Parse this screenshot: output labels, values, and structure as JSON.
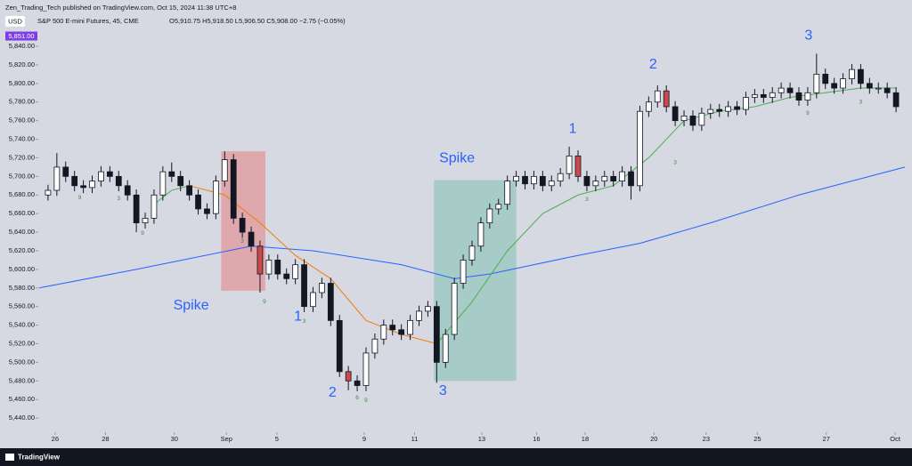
{
  "header": {
    "published": "Zen_Trading_Tech published on TradingView.com, Oct 15, 2024 11:38 UTC+8",
    "symbol": "S&P 500 E-mini Futures, 45, CME",
    "ohlc": "O5,910.75 H5,918.50 L5,906.50 C5,908.00 −2.75 (−0.05%)",
    "currency": "USD"
  },
  "footer": {
    "brand": "TradingView"
  },
  "chart_data": {
    "type": "candlestick",
    "xlim": [
      -1,
      97
    ],
    "ylim": [
      5425,
      5856
    ],
    "xticks": [
      {
        "value": 0.8,
        "label": "26"
      },
      {
        "value": 6.5,
        "label": "28"
      },
      {
        "value": 14.3,
        "label": "30"
      },
      {
        "value": 20.2,
        "label": "Sep"
      },
      {
        "value": 25.9,
        "label": "5"
      },
      {
        "value": 35.8,
        "label": "9"
      },
      {
        "value": 41.5,
        "label": "11"
      },
      {
        "value": 49.1,
        "label": "13"
      },
      {
        "value": 55.3,
        "label": "16"
      },
      {
        "value": 60.8,
        "label": "18"
      },
      {
        "value": 68.6,
        "label": "20"
      },
      {
        "value": 74.5,
        "label": "23"
      },
      {
        "value": 80.3,
        "label": "25"
      },
      {
        "value": 88.1,
        "label": "27"
      },
      {
        "value": 95.9,
        "label": "Oct"
      }
    ],
    "yticks": [
      {
        "value": 5440,
        "label": "5,440.00"
      },
      {
        "value": 5460,
        "label": "5,460.00"
      },
      {
        "value": 5480,
        "label": "5,480.00"
      },
      {
        "value": 5500,
        "label": "5,500.00"
      },
      {
        "value": 5520,
        "label": "5,520.00"
      },
      {
        "value": 5540,
        "label": "5,540.00"
      },
      {
        "value": 5560,
        "label": "5,560.00"
      },
      {
        "value": 5580,
        "label": "5,580.00"
      },
      {
        "value": 5600,
        "label": "5,600.00"
      },
      {
        "value": 5620,
        "label": "5,620.00"
      },
      {
        "value": 5640,
        "label": "5,640.00"
      },
      {
        "value": 5660,
        "label": "5,660.00"
      },
      {
        "value": 5680,
        "label": "5,680.00"
      },
      {
        "value": 5700,
        "label": "5,700.00"
      },
      {
        "value": 5720,
        "label": "5,720.00"
      },
      {
        "value": 5740,
        "label": "5,740.00"
      },
      {
        "value": 5760,
        "label": "5,760.00"
      },
      {
        "value": 5780,
        "label": "5,780.00"
      },
      {
        "value": 5800,
        "label": "5,800.00"
      },
      {
        "value": 5820,
        "label": "5,820.00"
      },
      {
        "value": 5840,
        "label": "5,840.00"
      }
    ],
    "price_label": {
      "value": 5851,
      "label": "5,851.00",
      "color": "#7b3fe4"
    },
    "up_color": "#ffffff",
    "down_color": "#131722",
    "wick_color": "#131722",
    "highlight_color": "#c84a4a",
    "highlighted_candles": [
      24,
      34,
      60,
      70
    ],
    "x": [
      0,
      1,
      2,
      3,
      4,
      5,
      6,
      7,
      8,
      9,
      10,
      11,
      12,
      13,
      14,
      15,
      16,
      17,
      18,
      19,
      20,
      21,
      22,
      23,
      24,
      25,
      26,
      27,
      28,
      29,
      30,
      31,
      32,
      33,
      34,
      35,
      36,
      37,
      38,
      39,
      40,
      41,
      42,
      43,
      44,
      45,
      46,
      47,
      48,
      49,
      50,
      51,
      52,
      53,
      54,
      55,
      56,
      57,
      58,
      59,
      60,
      61,
      62,
      63,
      64,
      65,
      66,
      67,
      68,
      69,
      70,
      71,
      72,
      73,
      74,
      75,
      76,
      77,
      78,
      79,
      80,
      81,
      82,
      83,
      84,
      85,
      86,
      87,
      88,
      89,
      90,
      91,
      92,
      93,
      94,
      95,
      96
    ],
    "open": [
      5680,
      5685,
      5710,
      5700,
      5690,
      5688,
      5695,
      5705,
      5700,
      5690,
      5680,
      5650,
      5655,
      5680,
      5705,
      5700,
      5690,
      5680,
      5665,
      5660,
      5695,
      5718,
      5655,
      5640,
      5625,
      5595,
      5610,
      5595,
      5590,
      5605,
      5560,
      5575,
      5585,
      5545,
      5490,
      5480,
      5475,
      5510,
      5525,
      5540,
      5535,
      5530,
      5545,
      5555,
      5560,
      5500,
      5530,
      5585,
      5610,
      5625,
      5650,
      5665,
      5670,
      5695,
      5700,
      5692,
      5700,
      5690,
      5695,
      5703,
      5722,
      5700,
      5690,
      5695,
      5700,
      5695,
      5705,
      5690,
      5770,
      5780,
      5792,
      5775,
      5760,
      5765,
      5755,
      5768,
      5772,
      5770,
      5775,
      5772,
      5785,
      5788,
      5785,
      5790,
      5795,
      5790,
      5782,
      5790,
      5810,
      5800,
      5795,
      5805,
      5815,
      5800,
      5795,
      5795,
      5790
    ],
    "high": [
      5691,
      5725,
      5716,
      5706,
      5696,
      5701,
      5711,
      5711,
      5706,
      5696,
      5686,
      5661,
      5686,
      5711,
      5715,
      5706,
      5696,
      5686,
      5671,
      5701,
      5727,
      5724,
      5661,
      5646,
      5631,
      5616,
      5616,
      5601,
      5611,
      5611,
      5581,
      5591,
      5591,
      5551,
      5496,
      5486,
      5516,
      5531,
      5546,
      5546,
      5541,
      5551,
      5561,
      5566,
      5566,
      5536,
      5591,
      5616,
      5631,
      5656,
      5671,
      5676,
      5701,
      5706,
      5706,
      5706,
      5706,
      5701,
      5709,
      5732,
      5728,
      5706,
      5701,
      5706,
      5706,
      5711,
      5711,
      5776,
      5786,
      5798,
      5798,
      5781,
      5771,
      5771,
      5774,
      5778,
      5778,
      5781,
      5781,
      5791,
      5794,
      5794,
      5796,
      5801,
      5801,
      5796,
      5796,
      5832,
      5816,
      5806,
      5811,
      5821,
      5821,
      5806,
      5801,
      5801,
      5796
    ],
    "low": [
      5674,
      5679,
      5694,
      5684,
      5682,
      5682,
      5689,
      5694,
      5684,
      5674,
      5640,
      5644,
      5649,
      5674,
      5694,
      5684,
      5674,
      5659,
      5654,
      5654,
      5689,
      5649,
      5634,
      5619,
      5575,
      5589,
      5589,
      5584,
      5584,
      5554,
      5554,
      5569,
      5539,
      5484,
      5470,
      5469,
      5469,
      5504,
      5519,
      5529,
      5524,
      5524,
      5539,
      5549,
      5478,
      5494,
      5524,
      5579,
      5604,
      5619,
      5644,
      5659,
      5664,
      5689,
      5686,
      5686,
      5684,
      5684,
      5689,
      5697,
      5694,
      5684,
      5684,
      5689,
      5689,
      5689,
      5675,
      5684,
      5764,
      5774,
      5769,
      5754,
      5754,
      5749,
      5749,
      5762,
      5764,
      5764,
      5766,
      5766,
      5779,
      5779,
      5779,
      5784,
      5784,
      5776,
      5776,
      5784,
      5794,
      5789,
      5789,
      5799,
      5794,
      5789,
      5789,
      5784,
      5769
    ],
    "close": [
      5685,
      5710,
      5700,
      5690,
      5688,
      5695,
      5705,
      5700,
      5690,
      5680,
      5650,
      5655,
      5680,
      5705,
      5700,
      5690,
      5680,
      5665,
      5660,
      5695,
      5718,
      5655,
      5640,
      5625,
      5595,
      5610,
      5595,
      5590,
      5605,
      5560,
      5575,
      5585,
      5545,
      5490,
      5480,
      5475,
      5510,
      5525,
      5540,
      5535,
      5530,
      5545,
      5555,
      5560,
      5500,
      5530,
      5585,
      5610,
      5625,
      5650,
      5665,
      5670,
      5695,
      5700,
      5692,
      5700,
      5690,
      5695,
      5703,
      5722,
      5700,
      5690,
      5695,
      5700,
      5695,
      5705,
      5690,
      5770,
      5780,
      5792,
      5775,
      5760,
      5765,
      5755,
      5768,
      5772,
      5770,
      5775,
      5772,
      5785,
      5788,
      5785,
      5790,
      5795,
      5790,
      5782,
      5790,
      5810,
      5800,
      5795,
      5805,
      5815,
      5800,
      5795,
      5795,
      5790,
      5775
    ],
    "lines": [
      {
        "color": "#2962ff",
        "x": [
          -1,
          10,
          23,
          30,
          40,
          46,
          50,
          60,
          67,
          75,
          85,
          97
        ],
        "values": [
          5580,
          5600,
          5625,
          5620,
          5605,
          5590,
          5595,
          5615,
          5628,
          5650,
          5680,
          5710
        ]
      },
      {
        "color": "#4caf50",
        "x": [
          12,
          14,
          16
        ],
        "values": [
          5670,
          5685,
          5690
        ]
      },
      {
        "color": "#f57c00",
        "x": [
          16,
          20,
          24,
          28,
          32,
          36,
          40,
          44
        ],
        "values": [
          5690,
          5680,
          5650,
          5615,
          5590,
          5545,
          5530,
          5520
        ]
      },
      {
        "color": "#4caf50",
        "x": [
          44,
          48,
          52,
          56,
          60,
          64,
          68,
          72,
          76,
          80,
          84,
          88,
          92,
          96
        ],
        "values": [
          5520,
          5565,
          5620,
          5660,
          5680,
          5690,
          5720,
          5760,
          5770,
          5775,
          5785,
          5790,
          5795,
          5795
        ]
      }
    ],
    "zones": [
      {
        "x": [
          19.6,
          24.6
        ],
        "y": [
          5577,
          5727
        ],
        "color": "rgba(230,120,120,0.5)"
      },
      {
        "x": [
          43.7,
          53.0
        ],
        "y": [
          5480,
          5696
        ],
        "color": "rgba(120,190,170,0.5)"
      }
    ],
    "annotations": [
      {
        "text": "Spike",
        "x": 16.2,
        "y": 5561
      },
      {
        "text": "Spike",
        "x": 46.3,
        "y": 5719
      },
      {
        "text": "1",
        "x": 28.3,
        "y": 5549
      },
      {
        "text": "2",
        "x": 32.2,
        "y": 5467
      },
      {
        "text": "3",
        "x": 44.7,
        "y": 5469
      },
      {
        "text": "1",
        "x": 59.4,
        "y": 5751
      },
      {
        "text": "2",
        "x": 68.5,
        "y": 5820
      },
      {
        "text": "3",
        "x": 86.1,
        "y": 5851
      }
    ],
    "counts": [
      {
        "text": "9",
        "x": 3.6,
        "y": 5677
      },
      {
        "text": "3",
        "x": 8,
        "y": 5676
      },
      {
        "text": "9",
        "x": 10.7,
        "y": 5639
      },
      {
        "text": "3",
        "x": 22,
        "y": 5630
      },
      {
        "text": "9",
        "x": 24.5,
        "y": 5565
      },
      {
        "text": "3",
        "x": 29,
        "y": 5544
      },
      {
        "text": "6",
        "x": 35,
        "y": 5462
      },
      {
        "text": "9",
        "x": 36,
        "y": 5459
      },
      {
        "text": "3",
        "x": 61,
        "y": 5675
      },
      {
        "text": "3",
        "x": 71,
        "y": 5715
      },
      {
        "text": "9",
        "x": 86,
        "y": 5768
      },
      {
        "text": "3",
        "x": 92,
        "y": 5780
      }
    ]
  }
}
